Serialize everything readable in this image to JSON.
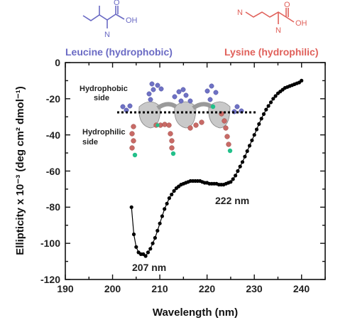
{
  "colors": {
    "leucine": "#6a6ac4",
    "lysine": "#e0605a",
    "axis": "#111111",
    "data": "#000000",
    "helix": "#b8b8b8"
  },
  "molecules": {
    "leucine": {
      "label": "Leucine (hydrophobic)",
      "n_atom": "N",
      "oh_atom": "OH",
      "o_atom": "O"
    },
    "lysine": {
      "label": "Lysine (hydrophilic)",
      "n_atom": "N",
      "oh_atom": "OH",
      "o_atom": "O",
      "side_n_atom": "N"
    }
  },
  "helix_inset": {
    "hydrophobic_label": [
      "Hydrophobic",
      "side"
    ],
    "hydrophilic_label": [
      "Hydrophilic",
      "side"
    ]
  },
  "chart_data": {
    "type": "line",
    "xlabel": "Wavelength (nm)",
    "ylabel": "Ellipticity x 10⁻³ (deg cm² dmol⁻¹)",
    "xlim": [
      190,
      245
    ],
    "ylim": [
      -120,
      0
    ],
    "xticks": [
      190,
      200,
      210,
      220,
      230,
      240
    ],
    "yticks": [
      0,
      -20,
      -40,
      -60,
      -80,
      -100,
      -120
    ],
    "grid": false,
    "series": [
      {
        "x": [
          204,
          204.5,
          205,
          205.5,
          206,
          206.5,
          207,
          207.5,
          208,
          208.5,
          209,
          209.5,
          210,
          210.5,
          211,
          211.5,
          212,
          212.5,
          213,
          213.5,
          214,
          214.5,
          215,
          215.5,
          216,
          216.5,
          217,
          217.5,
          218,
          218.5,
          219,
          219.5,
          220,
          220.5,
          221,
          221.5,
          222,
          222.5,
          223,
          223.5,
          224,
          224.5,
          225,
          225.5,
          226,
          226.5,
          227,
          227.5,
          228,
          228.5,
          229,
          229.5,
          230,
          230.5,
          231,
          231.5,
          232,
          232.5,
          233,
          233.5,
          234,
          234.5,
          235,
          235.5,
          236,
          236.5,
          237,
          237.5,
          238,
          238.5,
          239,
          239.5,
          240
        ],
        "y": [
          -80,
          -95,
          -102,
          -105,
          -106,
          -106,
          -107,
          -105,
          -103,
          -100,
          -97,
          -93,
          -89,
          -85,
          -81,
          -78,
          -75,
          -73,
          -71,
          -69.5,
          -68.5,
          -67.5,
          -67,
          -66.5,
          -66,
          -65.5,
          -65.5,
          -65.5,
          -65.5,
          -65.5,
          -66,
          -66.5,
          -66.5,
          -67,
          -67,
          -67,
          -67,
          -67.5,
          -67.5,
          -67.5,
          -67,
          -66.5,
          -66,
          -64.5,
          -62.5,
          -60,
          -57.5,
          -55,
          -52,
          -49,
          -46,
          -43,
          -40,
          -37,
          -34,
          -31,
          -28.5,
          -26,
          -24,
          -22,
          -20,
          -18.5,
          -17,
          -16,
          -15,
          -14,
          -13.5,
          -13,
          -12.5,
          -12,
          -11.5,
          -11,
          -10
        ]
      }
    ],
    "annotations": [
      {
        "text": "207 nm"
      },
      {
        "text": "222 nm"
      }
    ]
  }
}
